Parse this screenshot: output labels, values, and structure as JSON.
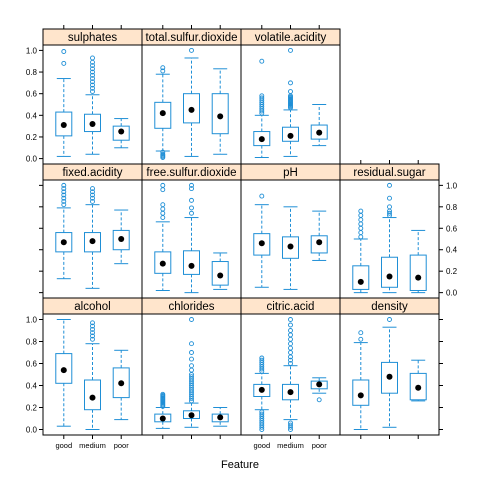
{
  "chart_data": {
    "type": "box",
    "xlabel": "Feature",
    "ylabel": "",
    "categories": [
      "good",
      "medium",
      "poor"
    ],
    "ylim": [
      -0.05,
      1.05
    ],
    "yticks": [
      "0.0",
      "0.2",
      "0.4",
      "0.6",
      "0.8",
      "1.0"
    ],
    "colors": {
      "box": "#1f8fd6",
      "strip": "#ffe5cc",
      "mean": "#000000",
      "frame": "#000000"
    },
    "panels": [
      {
        "name": "sulphates",
        "boxes": [
          {
            "q1": 0.21,
            "median": 0.3,
            "q3": 0.43,
            "whisker_low": 0.02,
            "whisker_high": 0.74,
            "mean": 0.31,
            "outliers": [
              0.88,
              0.99
            ]
          },
          {
            "q1": 0.25,
            "median": 0.32,
            "q3": 0.41,
            "whisker_low": 0.04,
            "whisker_high": 0.59,
            "mean": 0.32,
            "outliers": [
              0.62,
              0.65,
              0.68,
              0.71,
              0.74,
              0.77,
              0.8,
              0.83,
              0.86,
              0.89,
              0.93
            ]
          },
          {
            "q1": 0.17,
            "median": 0.24,
            "q3": 0.3,
            "whisker_low": 0.1,
            "whisker_high": 0.37,
            "mean": 0.25,
            "outliers": []
          }
        ]
      },
      {
        "name": "total.sulfur.dioxide",
        "boxes": [
          {
            "q1": 0.28,
            "median": 0.4,
            "q3": 0.52,
            "whisker_low": 0.07,
            "whisker_high": 0.78,
            "mean": 0.42,
            "outliers": [
              0.01,
              0.02,
              0.03,
              0.04,
              0.06,
              0.81,
              0.84
            ]
          },
          {
            "q1": 0.33,
            "median": 0.46,
            "q3": 0.6,
            "whisker_low": 0.02,
            "whisker_high": 0.93,
            "mean": 0.45,
            "outliers": [
              1.0
            ]
          },
          {
            "q1": 0.23,
            "median": 0.41,
            "q3": 0.6,
            "whisker_low": 0.04,
            "whisker_high": 0.83,
            "mean": 0.39,
            "outliers": []
          }
        ]
      },
      {
        "name": "volatile.acidity",
        "boxes": [
          {
            "q1": 0.12,
            "median": 0.17,
            "q3": 0.25,
            "whisker_low": 0.01,
            "whisker_high": 0.4,
            "mean": 0.18,
            "outliers": [
              0.42,
              0.44,
              0.46,
              0.48,
              0.5,
              0.52,
              0.54,
              0.56,
              0.58,
              0.9
            ]
          },
          {
            "q1": 0.16,
            "median": 0.21,
            "q3": 0.29,
            "whisker_low": 0.02,
            "whisker_high": 0.45,
            "mean": 0.21,
            "outliers": [
              0.47,
              0.48,
              0.49,
              0.5,
              0.51,
              0.52,
              0.53,
              0.54,
              0.55,
              0.56,
              0.57,
              0.58,
              0.62,
              0.7,
              1.0
            ]
          },
          {
            "q1": 0.18,
            "median": 0.23,
            "q3": 0.31,
            "whisker_low": 0.12,
            "whisker_high": 0.5,
            "mean": 0.24,
            "outliers": []
          }
        ]
      },
      {
        "name": "fixed.acidity",
        "boxes": [
          {
            "q1": 0.38,
            "median": 0.46,
            "q3": 0.56,
            "whisker_low": 0.13,
            "whisker_high": 0.79,
            "mean": 0.47,
            "outliers": [
              0.82,
              0.85,
              0.88,
              0.91,
              0.94,
              0.97,
              1.0
            ]
          },
          {
            "q1": 0.38,
            "median": 0.47,
            "q3": 0.56,
            "whisker_low": 0.04,
            "whisker_high": 0.82,
            "mean": 0.48,
            "outliers": [
              0.85,
              0.88,
              0.91,
              0.94,
              0.97
            ]
          },
          {
            "q1": 0.4,
            "median": 0.5,
            "q3": 0.58,
            "whisker_low": 0.27,
            "whisker_high": 0.77,
            "mean": 0.5,
            "outliers": []
          }
        ]
      },
      {
        "name": "free.sulfur.dioxide",
        "boxes": [
          {
            "q1": 0.18,
            "median": 0.26,
            "q3": 0.38,
            "whisker_low": 0.02,
            "whisker_high": 0.66,
            "mean": 0.27,
            "outliers": [
              0.7,
              0.74,
              0.78,
              0.82,
              0.96,
              1.0
            ]
          },
          {
            "q1": 0.17,
            "median": 0.27,
            "q3": 0.39,
            "whisker_low": 0.0,
            "whisker_high": 0.7,
            "mean": 0.25,
            "outliers": [
              0.74,
              0.79,
              0.86,
              0.97,
              1.0
            ]
          },
          {
            "q1": 0.07,
            "median": 0.16,
            "q3": 0.29,
            "whisker_low": 0.03,
            "whisker_high": 0.37,
            "mean": 0.16,
            "outliers": []
          }
        ]
      },
      {
        "name": "pH",
        "boxes": [
          {
            "q1": 0.35,
            "median": 0.45,
            "q3": 0.55,
            "whisker_low": 0.05,
            "whisker_high": 0.82,
            "mean": 0.46,
            "outliers": [
              0.9
            ]
          },
          {
            "q1": 0.32,
            "median": 0.43,
            "q3": 0.52,
            "whisker_low": 0.03,
            "whisker_high": 0.8,
            "mean": 0.43,
            "outliers": []
          },
          {
            "q1": 0.37,
            "median": 0.46,
            "q3": 0.53,
            "whisker_low": 0.3,
            "whisker_high": 0.76,
            "mean": 0.47,
            "outliers": []
          }
        ]
      },
      {
        "name": "residual.sugar",
        "boxes": [
          {
            "q1": 0.03,
            "median": 0.08,
            "q3": 0.25,
            "whisker_low": 0.0,
            "whisker_high": 0.5,
            "mean": 0.1,
            "outliers": [
              0.52,
              0.56,
              0.6,
              0.64,
              0.68,
              0.72,
              0.76
            ]
          },
          {
            "q1": 0.05,
            "median": 0.15,
            "q3": 0.33,
            "whisker_low": 0.0,
            "whisker_high": 0.7,
            "mean": 0.15,
            "outliers": [
              0.72,
              0.74,
              0.76,
              0.8,
              0.88,
              1.0
            ]
          },
          {
            "q1": 0.02,
            "median": 0.12,
            "q3": 0.35,
            "whisker_low": 0.0,
            "whisker_high": 0.58,
            "mean": 0.14,
            "outliers": []
          }
        ]
      },
      {
        "name": "alcohol",
        "boxes": [
          {
            "q1": 0.42,
            "median": 0.56,
            "q3": 0.69,
            "whisker_low": 0.03,
            "whisker_high": 1.0,
            "mean": 0.54,
            "outliers": []
          },
          {
            "q1": 0.18,
            "median": 0.3,
            "q3": 0.45,
            "whisker_low": 0.0,
            "whisker_high": 0.78,
            "mean": 0.29,
            "outliers": [
              0.82,
              0.85,
              0.88,
              0.91,
              0.94,
              0.97
            ]
          },
          {
            "q1": 0.29,
            "median": 0.41,
            "q3": 0.56,
            "whisker_low": 0.09,
            "whisker_high": 0.72,
            "mean": 0.42,
            "outliers": []
          }
        ]
      },
      {
        "name": "chlorides",
        "boxes": [
          {
            "q1": 0.07,
            "median": 0.1,
            "q3": 0.14,
            "whisker_low": 0.01,
            "whisker_high": 0.2,
            "mean": 0.1,
            "outliers": [
              0.21,
              0.22,
              0.23,
              0.24,
              0.25,
              0.26,
              0.27,
              0.28,
              0.29,
              0.3,
              0.31,
              0.32
            ]
          },
          {
            "q1": 0.1,
            "median": 0.13,
            "q3": 0.17,
            "whisker_low": 0.02,
            "whisker_high": 0.24,
            "mean": 0.13,
            "outliers": [
              0.26,
              0.28,
              0.3,
              0.32,
              0.34,
              0.36,
              0.38,
              0.4,
              0.42,
              0.44,
              0.46,
              0.48,
              0.5,
              0.54,
              0.58,
              0.64,
              0.7,
              0.78,
              1.0
            ]
          },
          {
            "q1": 0.07,
            "median": 0.11,
            "q3": 0.14,
            "whisker_low": 0.03,
            "whisker_high": 0.2,
            "mean": 0.11,
            "outliers": []
          }
        ]
      },
      {
        "name": "citric.acid",
        "boxes": [
          {
            "q1": 0.3,
            "median": 0.35,
            "q3": 0.41,
            "whisker_low": 0.18,
            "whisker_high": 0.51,
            "mean": 0.36,
            "outliers": [
              0.0,
              0.02,
              0.04,
              0.06,
              0.08,
              0.1,
              0.12,
              0.14,
              0.16,
              0.53,
              0.55,
              0.57,
              0.59,
              0.61,
              0.63,
              0.65
            ]
          },
          {
            "q1": 0.27,
            "median": 0.33,
            "q3": 0.41,
            "whisker_low": 0.09,
            "whisker_high": 0.58,
            "mean": 0.34,
            "outliers": [
              0.0,
              0.02,
              0.04,
              0.06,
              0.6,
              0.63,
              0.66,
              0.7,
              0.74,
              0.78,
              0.82,
              0.86,
              0.9,
              0.95,
              1.0
            ]
          },
          {
            "q1": 0.37,
            "median": 0.41,
            "q3": 0.44,
            "whisker_low": 0.33,
            "whisker_high": 0.47,
            "mean": 0.41,
            "outliers": [
              0.27
            ]
          }
        ]
      },
      {
        "name": "density",
        "boxes": [
          {
            "q1": 0.22,
            "median": 0.32,
            "q3": 0.45,
            "whisker_low": 0.0,
            "whisker_high": 0.79,
            "mean": 0.31,
            "outliers": [
              0.82,
              0.88
            ]
          },
          {
            "q1": 0.33,
            "median": 0.48,
            "q3": 0.61,
            "whisker_low": 0.02,
            "whisker_high": 0.93,
            "mean": 0.48,
            "outliers": [
              1.0
            ]
          },
          {
            "q1": 0.27,
            "median": 0.36,
            "q3": 0.51,
            "whisker_low": 0.26,
            "whisker_high": 0.63,
            "mean": 0.38,
            "outliers": []
          }
        ]
      }
    ]
  }
}
